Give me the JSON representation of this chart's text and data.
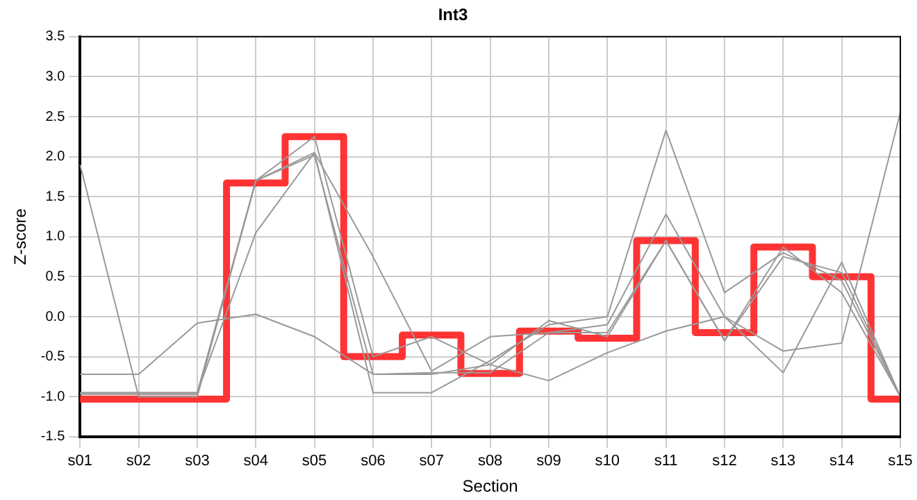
{
  "chart_data": {
    "type": "line",
    "title": "Int3",
    "xlabel": "Section",
    "ylabel": "Z-score",
    "categories": [
      "s01",
      "s02",
      "s03",
      "s04",
      "s05",
      "s06",
      "s07",
      "s08",
      "s09",
      "s10",
      "s11",
      "s12",
      "s13",
      "s14",
      "s15"
    ],
    "series": [
      {
        "type": "line",
        "color": "#999999",
        "values": [
          1.9,
          -1.0,
          -1.0,
          1.7,
          2.05,
          -0.95,
          -0.95,
          -0.55,
          -0.1,
          0.0,
          2.33,
          0.3,
          0.8,
          0.45,
          -1.0
        ]
      },
      {
        "type": "line",
        "color": "#999999",
        "values": [
          -0.72,
          -0.72,
          -0.08,
          0.03,
          -0.25,
          -0.72,
          -0.72,
          -0.6,
          -0.8,
          -0.45,
          -0.18,
          0.0,
          -0.43,
          -0.33,
          2.55
        ]
      },
      {
        "type": "line",
        "color": "#999999",
        "values": [
          -0.95,
          -0.95,
          -0.95,
          1.05,
          2.05,
          0.75,
          -0.68,
          -0.25,
          -0.2,
          -0.1,
          1.28,
          0.0,
          -0.7,
          0.68,
          -1.0
        ]
      },
      {
        "type": "line",
        "color": "#999999",
        "values": [
          -0.95,
          -0.95,
          -0.95,
          1.7,
          2.25,
          -0.5,
          -0.25,
          -0.6,
          -0.05,
          -0.25,
          0.95,
          -0.3,
          0.75,
          0.55,
          -1.0
        ]
      },
      {
        "type": "line",
        "color": "#999999",
        "values": [
          -0.97,
          -0.97,
          -0.97,
          1.7,
          2.02,
          -0.72,
          -0.7,
          -0.7,
          -0.2,
          -0.2,
          0.95,
          -0.3,
          0.87,
          0.3,
          -1.0
        ]
      },
      {
        "type": "step",
        "color": "#ff3333",
        "values": [
          -1.03,
          -1.03,
          -1.03,
          1.67,
          2.25,
          -0.5,
          -0.23,
          -0.71,
          -0.18,
          -0.27,
          0.95,
          -0.2,
          0.87,
          0.5,
          -1.03
        ]
      }
    ],
    "ylim": [
      -1.5,
      3.5
    ],
    "yticks": [
      -1.5,
      {
        "value": -1,
        "label": "-1.0"
      },
      -0.5,
      {
        "value": 0,
        "label": "0.0"
      },
      0.5,
      {
        "value": 1,
        "label": "1.0"
      },
      1.5,
      {
        "value": 2,
        "label": "2.0"
      },
      2.5,
      {
        "value": 3,
        "label": "3.0"
      },
      3.5
    ],
    "grid": true,
    "legend": false,
    "marker": "none"
  }
}
